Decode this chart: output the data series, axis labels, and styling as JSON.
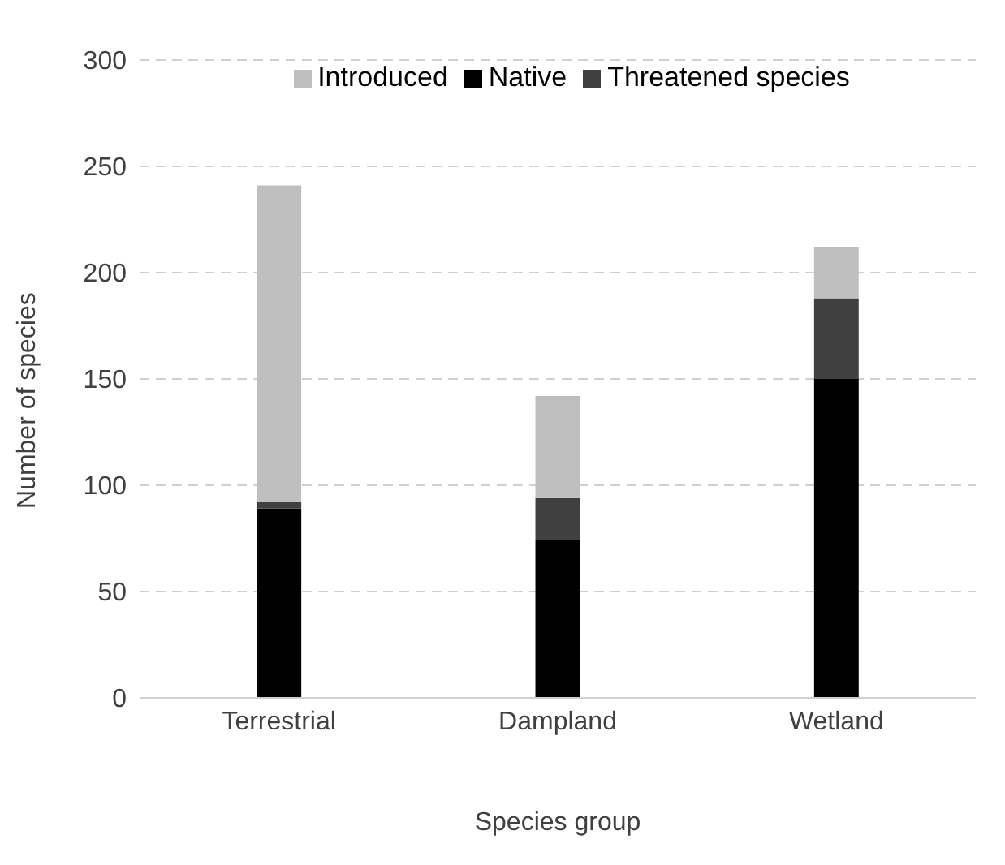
{
  "chart_data": {
    "type": "bar",
    "xlabel": "Species group",
    "ylabel": "Number of species",
    "categories": [
      "Terrestrial",
      "Dampland",
      "Wetland"
    ],
    "stacked": true,
    "series": [
      {
        "name": "Native",
        "color": "#000000",
        "values": [
          89,
          74,
          150
        ]
      },
      {
        "name": "Threatened species",
        "color": "#404040",
        "values": [
          3,
          20,
          38
        ]
      },
      {
        "name": "Introduced",
        "color": "#bfbfbf",
        "values": [
          149,
          48,
          24
        ]
      }
    ],
    "ylim": [
      0,
      300
    ],
    "yticks": [
      0,
      50,
      100,
      150,
      200,
      250,
      300
    ],
    "grid": "y",
    "legend": "top"
  }
}
